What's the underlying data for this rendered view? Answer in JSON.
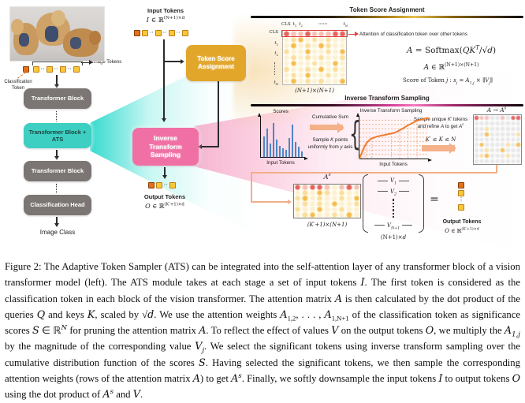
{
  "colors": {
    "teal": "#3ecfc3",
    "gold": "#e2a62b",
    "pink": "#f06fa4",
    "bar_blue": "#4e86c6",
    "curve_orange": "#ed7d31",
    "token_orange": "#e2711d",
    "token_yellow": "#f8c83c",
    "highlight_red": "#e03c3c",
    "connector_orange": "#f2ae88"
  },
  "left": {
    "image_tokens_label": "Image Tokens",
    "classification_token_label": "Classification Token",
    "block1": "Transformer Block",
    "block2": "Transformer Block + ATS",
    "block3": "Transformer Block",
    "block4": "Classification Head",
    "image_class_label": "Image Class"
  },
  "middle": {
    "input_label": "Input Tokens",
    "input_math": [
      [
        "I",
        "i"
      ],
      [
        " ∈ ℝ",
        ""
      ],
      [
        "(N+1)×d",
        "sup"
      ]
    ],
    "gold_label": "Token Score Assignment",
    "pink_label": "Inverse Transform Sampling",
    "output_label": "Output Tokens",
    "output_math": [
      [
        "O",
        "i"
      ],
      [
        " ∈ ℝ",
        ""
      ],
      [
        "(K′+1)×d",
        "sup"
      ]
    ]
  },
  "right_top": {
    "title": "Token Score Assignment",
    "attention_note": "Attention of classification token over other tokens",
    "col_cls": [
      [
        "CLS",
        ""
      ]
    ],
    "col_t1": [
      [
        "t",
        "i"
      ],
      [
        "1",
        "sub"
      ]
    ],
    "col_t2": [
      [
        "t",
        "i"
      ],
      [
        "2",
        "sub"
      ]
    ],
    "col_dots": [
      [
        "······",
        ""
      ]
    ],
    "col_tN": [
      [
        "t",
        "i"
      ],
      [
        "N",
        "subi"
      ]
    ],
    "dim_label": [
      [
        "(N+1)×(N+1)",
        "i"
      ]
    ],
    "formula1": [
      [
        "A",
        "i"
      ],
      [
        " = Softmax",
        ""
      ],
      [
        "(",
        ""
      ],
      [
        "QK",
        "i"
      ],
      [
        "T",
        "supi"
      ],
      [
        "/√",
        ""
      ],
      [
        "d",
        "i"
      ],
      [
        ")",
        ""
      ]
    ],
    "formula2": [
      [
        "A",
        "i"
      ],
      [
        " ∈ ℝ",
        ""
      ],
      [
        "(N+1)×(N+1)",
        "sup"
      ]
    ],
    "formula3": [
      [
        "Score of Token ",
        ""
      ],
      [
        "j",
        "i"
      ],
      [
        "  :   ",
        ""
      ],
      [
        "s",
        "i"
      ],
      [
        "j",
        "subi"
      ],
      [
        " = ",
        ""
      ],
      [
        "A",
        "i"
      ],
      [
        "1,j",
        "subi"
      ],
      [
        " × ∥",
        ""
      ],
      [
        "V",
        "i"
      ],
      [
        "j",
        "subi"
      ],
      [
        "∥",
        ""
      ]
    ]
  },
  "right_mid": {
    "title": "Inverse Transform Sampling",
    "scores_title": "Scores",
    "scores_xlabel": "Input Tokens",
    "cumsum_label": "Cumulative Sum",
    "sample_note": [
      [
        "Sample ",
        ""
      ],
      [
        "K",
        "i"
      ],
      [
        " points uniformly from ",
        ""
      ],
      [
        "y",
        "i"
      ],
      [
        " axis",
        ""
      ]
    ],
    "cdf_title": "Inverse Transform Sampling",
    "cdf_xlabel": "Input Tokens",
    "refine_note": [
      [
        "Sample unique ",
        ""
      ],
      [
        "K′",
        "i"
      ],
      [
        " tokens and refine ",
        ""
      ],
      [
        "A",
        "i"
      ],
      [
        " to get ",
        ""
      ],
      [
        "A",
        "i"
      ],
      [
        "s",
        "supi"
      ]
    ],
    "constraint": [
      [
        "K′",
        "i"
      ],
      [
        " ≤ ",
        ""
      ],
      [
        "K",
        "i"
      ],
      [
        " ≤ ",
        ""
      ],
      [
        "N",
        "i"
      ]
    ],
    "a_to_as": [
      [
        "A",
        "i"
      ],
      [
        " → ",
        ""
      ],
      [
        "A",
        "i"
      ],
      [
        "s",
        "supi"
      ]
    ]
  },
  "right_bottom": {
    "a_star": [
      [
        "A",
        "i"
      ],
      [
        "s",
        "supi"
      ]
    ],
    "a_star_dim": [
      [
        "(K′+1)×(N+1)",
        "i"
      ]
    ],
    "dot_op": "•",
    "v1": [
      [
        "V",
        "i"
      ],
      [
        "1",
        "subi"
      ]
    ],
    "v2": [
      [
        "V",
        "i"
      ],
      [
        "2",
        "subi"
      ]
    ],
    "vN1": [
      [
        "V",
        "i"
      ],
      [
        "N+1",
        "subi"
      ]
    ],
    "v_dim": [
      [
        "(N+1)×",
        ""
      ],
      [
        "d",
        "i"
      ]
    ],
    "equals": "=",
    "output_label": "Output Tokens",
    "output_math": [
      [
        "O",
        "i"
      ],
      [
        " ∈ ℝ",
        ""
      ],
      [
        "(K′+1)×d",
        "sup"
      ]
    ]
  },
  "tokens": {
    "dots_text": "··",
    "vdots_text": "⋮",
    "image_row": [
      "y",
      "d",
      "y",
      "d",
      "y",
      "d",
      "y"
    ],
    "input_row": [
      "c",
      "y",
      "d",
      "y",
      "d",
      "y",
      "d",
      "y"
    ],
    "output_row": [
      "c",
      "y",
      "d",
      "y"
    ],
    "output_stack": [
      "c",
      "y",
      "v",
      "y"
    ]
  },
  "matrices": {
    "attn": [
      "RrrRrrrRR",
      ".oO.o.o..",
      ".O.o.Oo..",
      "o..O..o.O",
      ".o.o.o..o",
      ".O..o..O.",
      "o..o.O.o.",
      ".o.O..o..",
      ".O.o.o..O"
    ],
    "refined": [
      "Rrr..r.RR",
      ".........",
      "..o......",
      "..O.....o",
      ".........",
      ".O....o.O",
      "..o..O...",
      ".oO...o..",
      "........."
    ],
    "astar": [
      "RrRRr.rRr",
      ".o.Oo.o..",
      "oO.o..o.O",
      ".o.o.O..o",
      "o..O..o..",
      ".oO..o.O."
    ]
  },
  "palettes": {
    "attn": {
      "R": "rgba(225,70,70,0.85)",
      "r": "rgba(235,130,120,0.5)",
      "O": "rgba(242,170,30,0.78)",
      "o": "rgba(245,195,80,0.52)",
      ".": "rgba(246,210,130,0.28)"
    },
    "refined": {
      "R": "rgba(225,70,70,0.8)",
      "r": "rgba(235,130,120,0.45)",
      "O": "rgba(242,170,30,0.7)",
      "o": "rgba(245,195,80,0.45)",
      ".": "rgba(150,150,150,0.18)"
    }
  },
  "chart_data": [
    {
      "type": "bar",
      "title": "Scores",
      "xlabel": "Input Tokens",
      "ylabel": "",
      "values": [
        55,
        75,
        35,
        90,
        45,
        30,
        22,
        18,
        50,
        85,
        40,
        28,
        15
      ],
      "bar_color": "#4e86c6",
      "ylim": [
        0,
        100
      ],
      "grid": false
    },
    {
      "type": "line",
      "title": "Inverse Transform Sampling",
      "xlabel": "Input Tokens",
      "ylabel": "",
      "line_color": "#ed7d31",
      "x": [
        0,
        3,
        6,
        10,
        16,
        26,
        38,
        50,
        60,
        70,
        82,
        92,
        100
      ],
      "y": [
        0,
        12,
        24,
        36,
        46,
        52,
        56,
        60,
        68,
        78,
        88,
        93,
        95
      ],
      "sample_x": [
        2.5,
        5.5,
        8,
        11,
        18,
        46,
        58,
        70,
        83
      ],
      "grid": "dotted, uniform horizontal sampling levels",
      "xlim": [
        0,
        1
      ],
      "ylim": [
        0,
        1
      ]
    }
  ],
  "caption_segments": [
    [
      "Figure 2: The Adaptive Token Sampler (ATS) can be integrated into the self-attention layer of any transformer block of a vision transformer model (left). The ATS module takes at each stage a set of input tokens ",
      ""
    ],
    [
      "I",
      "i"
    ],
    [
      ". The first token is considered as the classification token in each block of the vision transformer. The attention matrix ",
      ""
    ],
    [
      "A",
      "i"
    ],
    [
      " is then calculated by the dot product of the queries ",
      ""
    ],
    [
      "Q",
      "i"
    ],
    [
      " and keys ",
      ""
    ],
    [
      "K",
      "i"
    ],
    [
      ", scaled by √",
      ""
    ],
    [
      "d",
      "i"
    ],
    [
      ". We use the attention weights ",
      ""
    ],
    [
      "A",
      "i"
    ],
    [
      "1,2",
      "sub"
    ],
    [
      ", . . . , ",
      ""
    ],
    [
      "A",
      "i"
    ],
    [
      "1,N+1",
      "sub"
    ],
    [
      " of the classification token as significance scores ",
      ""
    ],
    [
      "S",
      "i"
    ],
    [
      " ∈ ℝ",
      ""
    ],
    [
      "N",
      "supi"
    ],
    [
      " for pruning the attention matrix ",
      ""
    ],
    [
      "A",
      "i"
    ],
    [
      ". To reflect the effect of values ",
      ""
    ],
    [
      "V",
      "i"
    ],
    [
      " on the output tokens ",
      ""
    ],
    [
      "O",
      "i"
    ],
    [
      ", we multiply the ",
      ""
    ],
    [
      "A",
      "i"
    ],
    [
      "1,j",
      "subi"
    ],
    [
      " by the magnitude of the corresponding value ",
      ""
    ],
    [
      "V",
      "i"
    ],
    [
      "j",
      "subi"
    ],
    [
      ". We select the significant tokens using inverse transform sampling over the cumulative distribution function of the scores ",
      ""
    ],
    [
      "S",
      "i"
    ],
    [
      ". Having selected the significant tokens, we then sample the corresponding attention weights (rows of the attention matrix ",
      ""
    ],
    [
      "A",
      "i"
    ],
    [
      ") to get ",
      ""
    ],
    [
      "A",
      "i"
    ],
    [
      "s",
      "supi"
    ],
    [
      ". Finally, we softly downsample the input tokens ",
      ""
    ],
    [
      "I",
      "i"
    ],
    [
      " to output tokens ",
      ""
    ],
    [
      "O",
      "i"
    ],
    [
      " using the dot product of ",
      ""
    ],
    [
      "A",
      "i"
    ],
    [
      "s",
      "supi"
    ],
    [
      " and ",
      ""
    ],
    [
      "V",
      "i"
    ],
    [
      ".",
      ""
    ]
  ]
}
